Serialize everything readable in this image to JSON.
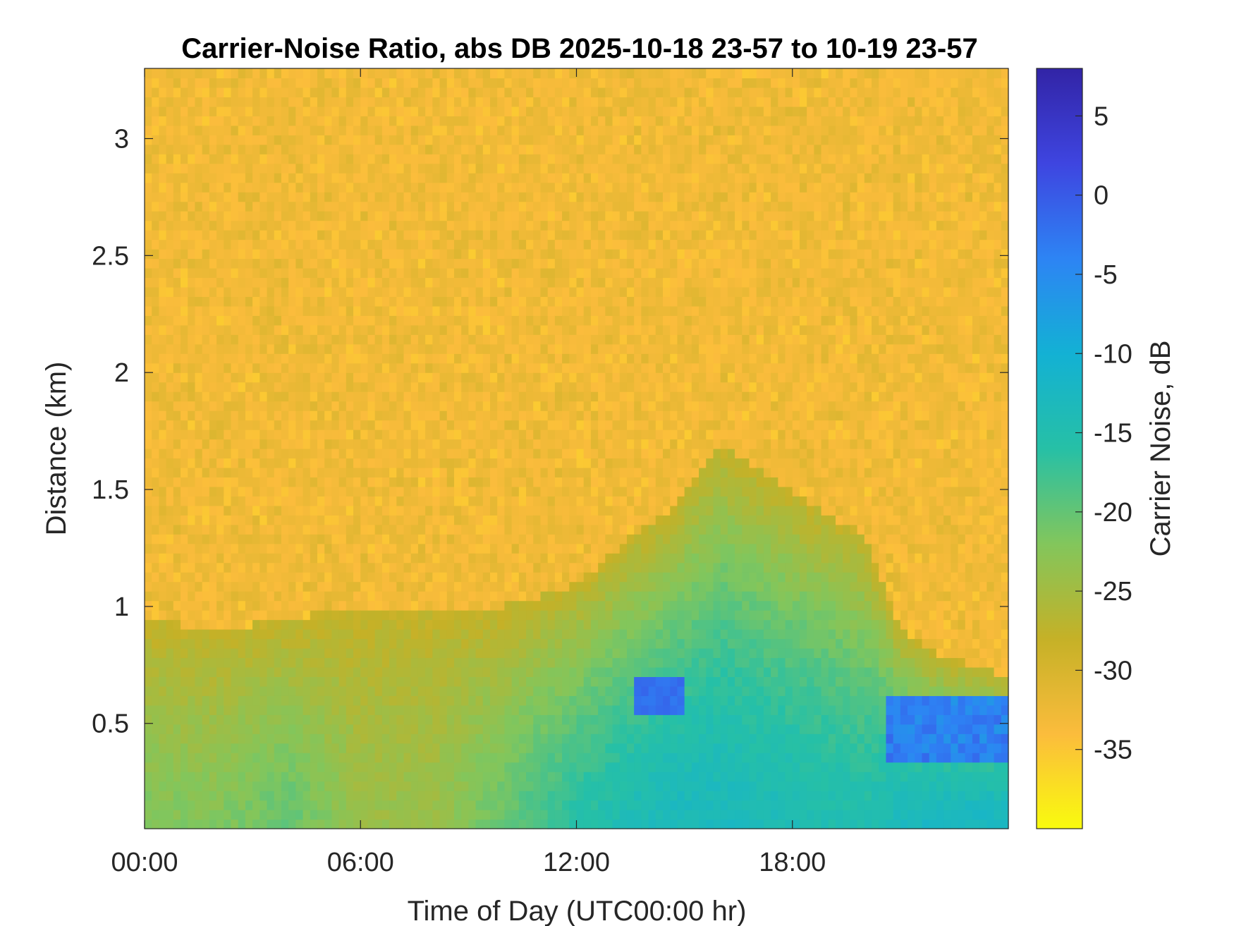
{
  "chart_data": {
    "type": "heatmap",
    "title": "Carrier-Noise Ratio, abs DB 2025-10-18 23-57 to 10-19 23-57",
    "xlabel": "Time of Day (UTC00:00 hr)",
    "ylabel": "Distance (km)",
    "colorbar_label": "Carrier Noise, dB",
    "x_range_hours": [
      0,
      24
    ],
    "y_range_km": [
      0.05,
      3.3
    ],
    "color_range_db": [
      -40,
      8
    ],
    "x_ticks": [
      {
        "value": 0,
        "label": "00:00"
      },
      {
        "value": 6,
        "label": "06:00"
      },
      {
        "value": 12,
        "label": "12:00"
      },
      {
        "value": 18,
        "label": "18:00"
      }
    ],
    "y_ticks": [
      {
        "value": 0.5,
        "label": "0.5"
      },
      {
        "value": 1,
        "label": "1"
      },
      {
        "value": 1.5,
        "label": "1.5"
      },
      {
        "value": 2,
        "label": "2"
      },
      {
        "value": 2.5,
        "label": "2.5"
      },
      {
        "value": 3,
        "label": "3"
      }
    ],
    "colorbar_ticks": [
      {
        "value": 5,
        "label": "5"
      },
      {
        "value": 0,
        "label": "0"
      },
      {
        "value": -5,
        "label": "-5"
      },
      {
        "value": -10,
        "label": "-10"
      },
      {
        "value": -15,
        "label": "-15"
      },
      {
        "value": -20,
        "label": "-20"
      },
      {
        "value": -25,
        "label": "-25"
      },
      {
        "value": -30,
        "label": "-30"
      },
      {
        "value": -35,
        "label": "-35"
      }
    ],
    "colormap": "parula",
    "colormap_stops": [
      "#f9fb0e",
      "#fbbc3c",
      "#c5b127",
      "#82c65c",
      "#26c0a6",
      "#13b1d4",
      "#2d84f4",
      "#3e45e0",
      "#3224a6"
    ],
    "background_db": -33,
    "profile_description_hours": [
      0,
      2,
      4,
      6,
      8,
      10,
      12,
      13.5,
      14.5,
      16,
      18,
      20,
      21,
      22,
      23,
      24
    ],
    "boundary_layer_top_km": [
      0.95,
      0.9,
      0.95,
      1.0,
      1.0,
      1.0,
      1.1,
      1.3,
      1.4,
      1.7,
      1.5,
      1.3,
      0.9,
      0.8,
      0.75,
      0.7
    ],
    "surface_layer_db": [
      -22,
      -22,
      -20,
      -24,
      -24,
      -20,
      -16,
      -14,
      -13,
      -13,
      -14,
      -15,
      -13,
      -12,
      -12,
      -12
    ],
    "strong_return_db": -2,
    "grid": false,
    "legend": "colorbar-right"
  }
}
